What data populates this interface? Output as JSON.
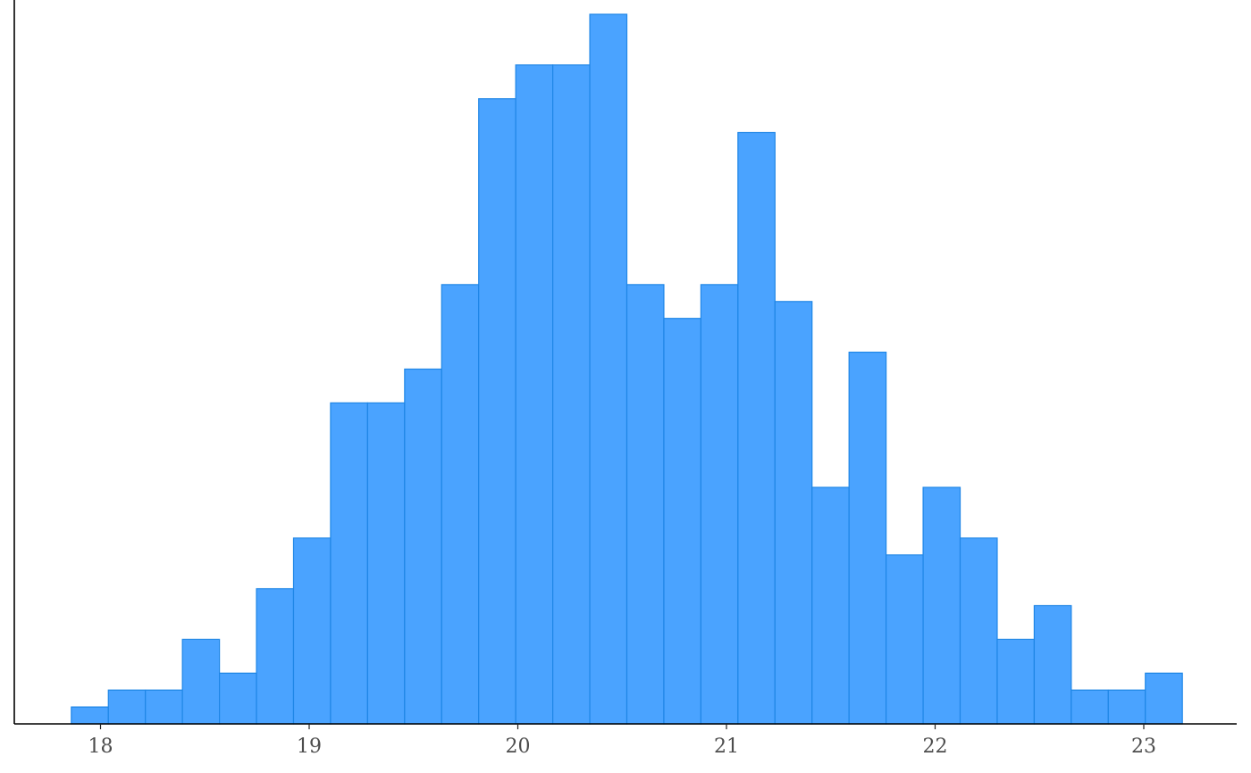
{
  "chart_data": {
    "type": "bar",
    "subtype": "histogram",
    "title": "",
    "xlabel": "",
    "ylabel": "",
    "x_range": [
      17.6,
      23.4
    ],
    "y_range": [
      0,
      42
    ],
    "bin_width": 0.1775,
    "bin_start": 17.86,
    "x_ticks": [
      18,
      19,
      20,
      21,
      22,
      23
    ],
    "x_tick_labels": [
      "18",
      "19",
      "20",
      "21",
      "22",
      "23"
    ],
    "y_axis_ticks_shown": false,
    "grid": false,
    "legend": "none",
    "counts": [
      1,
      2,
      2,
      5,
      3,
      8,
      11,
      19,
      19,
      21,
      26,
      37,
      39,
      39,
      42,
      26,
      24,
      26,
      35,
      25,
      14,
      22,
      10,
      14,
      11,
      5,
      7,
      2,
      2,
      3
    ],
    "colors": {
      "bar_fill": "#4aa3ff",
      "bar_stroke": "#1f86e6",
      "axis": "#000000",
      "tick_label": "#4d4d4d"
    }
  }
}
